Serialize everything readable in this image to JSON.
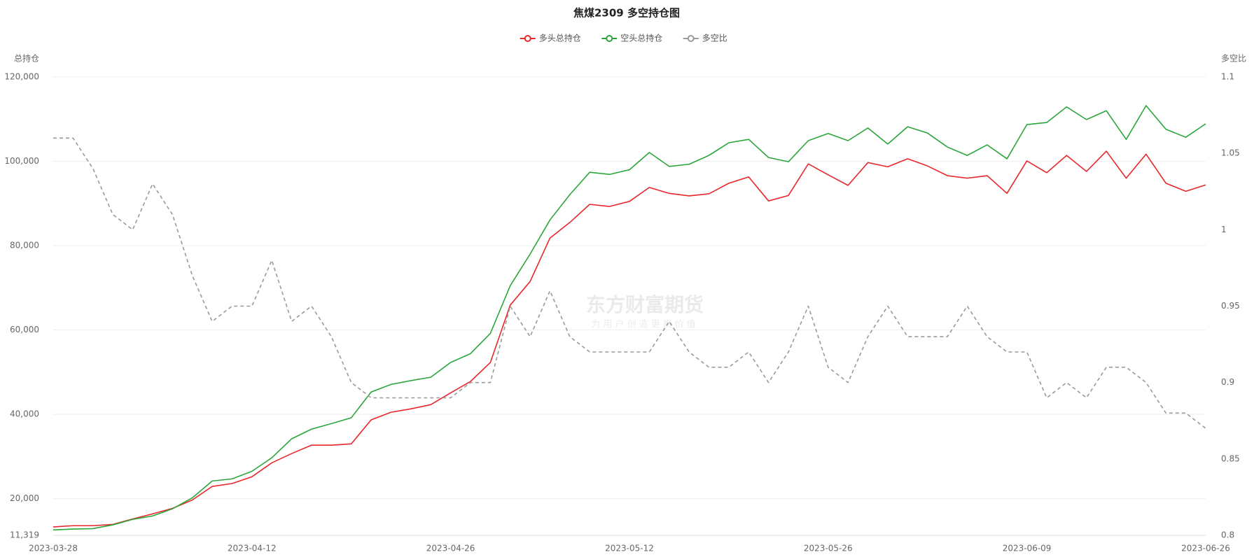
{
  "chart_data": {
    "type": "line",
    "title": "焦煤2309 多空持仓图",
    "y_axis_label": "总持仓",
    "y2_axis_label": "多空比",
    "watermark": "东方财富期货",
    "watermark_subtitle": "为用户创造更高价值",
    "categories": [
      "2023-03-28",
      null,
      null,
      null,
      null,
      null,
      null,
      null,
      null,
      null,
      "2023-04-12",
      null,
      null,
      null,
      null,
      null,
      null,
      null,
      null,
      null,
      "2023-04-26",
      null,
      null,
      null,
      null,
      null,
      null,
      null,
      null,
      "2023-05-12",
      null,
      null,
      null,
      null,
      null,
      null,
      null,
      null,
      null,
      "2023-05-26",
      null,
      null,
      null,
      null,
      null,
      null,
      null,
      null,
      null,
      "2023-06-09",
      null,
      null,
      null,
      null,
      null,
      null,
      null,
      null,
      "2023-06-26"
    ],
    "series": [
      {
        "name": "多头总持仓",
        "color": "#e8262b",
        "values": [
          13300,
          13600,
          13600,
          13900,
          15200,
          16400,
          17700,
          19700,
          22900,
          23600,
          25200,
          28500,
          30700,
          32700,
          32700,
          33000,
          38700,
          40500,
          41300,
          42300,
          45100,
          47800,
          52300,
          65900,
          71500,
          81800,
          85500,
          89800,
          89300,
          90500,
          93800,
          92400,
          91800,
          92300,
          94800,
          96300,
          90600,
          91900,
          99400,
          96800,
          94300,
          99700,
          98700,
          100600,
          98900,
          96600,
          96000,
          96600,
          92400,
          100100,
          97300,
          101400,
          97600,
          102400,
          96000,
          101700,
          94800,
          92900,
          94400
        ]
      },
      {
        "name": "空头总持仓",
        "color": "#2aa63a",
        "values": [
          12600,
          12800,
          12900,
          13800,
          15100,
          15900,
          17600,
          20200,
          24200,
          24700,
          26500,
          29700,
          34200,
          36500,
          37800,
          39200,
          45300,
          47100,
          48000,
          48800,
          52300,
          54400,
          59200,
          70500,
          78000,
          86100,
          92100,
          97400,
          96900,
          98000,
          102100,
          98800,
          99300,
          101400,
          104400,
          105200,
          100900,
          99900,
          104900,
          106600,
          104900,
          107900,
          104100,
          108200,
          106700,
          103400,
          101400,
          103900,
          100600,
          108700,
          109200,
          112900,
          109900,
          112000,
          105200,
          113200,
          107600,
          105700,
          108900
        ]
      },
      {
        "name": "多空比",
        "color": "#9a9a9a",
        "axis": "y2",
        "line_style": "dashed",
        "values": [
          1.06,
          1.06,
          1.04,
          1.01,
          1.0,
          1.03,
          1.01,
          0.97,
          0.94,
          0.95,
          0.95,
          0.98,
          0.94,
          0.95,
          0.93,
          0.9,
          0.89,
          0.89,
          0.89,
          0.89,
          0.89,
          0.9,
          0.9,
          0.95,
          0.93,
          0.96,
          0.93,
          0.92,
          0.92,
          0.92,
          0.92,
          0.94,
          0.92,
          0.91,
          0.91,
          0.92,
          0.9,
          0.92,
          0.95,
          0.91,
          0.9,
          0.93,
          0.95,
          0.93,
          0.93,
          0.93,
          0.95,
          0.93,
          0.92,
          0.92,
          0.89,
          0.9,
          0.89,
          0.91,
          0.91,
          0.9,
          0.88,
          0.88,
          0.87
        ]
      }
    ],
    "ylim": [
      11319,
      120000
    ],
    "yticks": [
      {
        "value": 11319,
        "label": "11,319"
      },
      {
        "value": 20000,
        "label": "20,000"
      },
      {
        "value": 40000,
        "label": "40,000"
      },
      {
        "value": 60000,
        "label": "60,000"
      },
      {
        "value": 80000,
        "label": "80,000"
      },
      {
        "value": 100000,
        "label": "100,000"
      },
      {
        "value": 120000,
        "label": "120,000"
      }
    ],
    "y2lim": [
      0.8,
      1.1
    ],
    "y2ticks": [
      0.8,
      0.85,
      0.9,
      0.95,
      1,
      1.05,
      1.1
    ],
    "grid": true,
    "legend": "top"
  }
}
